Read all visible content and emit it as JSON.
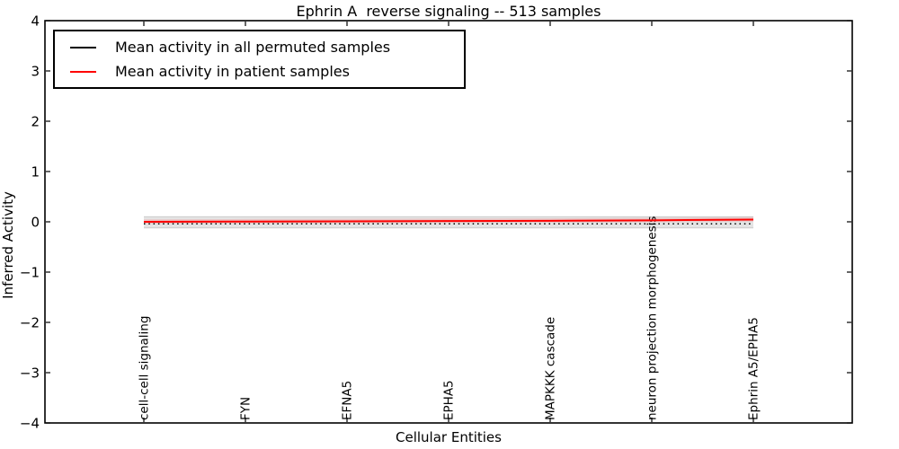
{
  "chart_data": {
    "type": "line",
    "title": "Ephrin A  reverse signaling -- 513 samples",
    "xlabel": "Cellular Entities",
    "ylabel": "Inferred Activity",
    "ylim": [
      -4,
      4
    ],
    "ytick_values": [
      4,
      3,
      2,
      1,
      0,
      -1,
      -2,
      -3,
      -4
    ],
    "ytick_labels": [
      "4",
      "3",
      "2",
      "1",
      "0",
      "−1",
      "−2",
      "−3",
      "−4"
    ],
    "grid": false,
    "legend_position": "upper left",
    "x_categories": [
      "cell-cell signaling",
      "FYN",
      "EFNA5",
      "EPHA5",
      "MAPKKK cascade",
      "neuron projection morphogenesis",
      "Ephrin A5/EPHA5"
    ],
    "series": [
      {
        "name": "Mean activity in all permuted samples",
        "color": "#000000",
        "line_style": "dotted",
        "values": [
          -0.04,
          -0.04,
          -0.04,
          -0.04,
          -0.04,
          -0.04,
          -0.04
        ]
      },
      {
        "name": "Mean activity in patient samples",
        "color": "#ff0000",
        "line_style": "solid",
        "values": [
          0.0,
          0.005,
          0.01,
          0.015,
          0.02,
          0.03,
          0.045
        ]
      }
    ],
    "bands": [
      {
        "name": "permuted-sample-range",
        "upper": 0.1,
        "lower": -0.12,
        "fill": "#e4e4e4",
        "edge": "#cccccc"
      },
      {
        "name": "patient-sample-range",
        "follows_series": 1,
        "upper_offset": 0.05,
        "lower_offset": 0.04,
        "fill": "rgba(255,0,0,0.12)"
      }
    ]
  }
}
